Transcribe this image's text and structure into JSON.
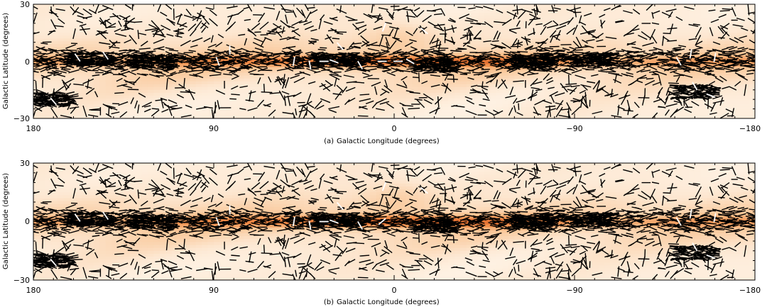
{
  "chart_data": [
    {
      "type": "heatmap",
      "panel_label": "(a)",
      "xlabel": "Galactic Longitude (degrees)",
      "ylabel": "Galactic Latitude (degrees)",
      "xlim": [
        180,
        -180
      ],
      "ylim": [
        -30,
        30
      ],
      "x_ticks": [
        180,
        90,
        0,
        -90,
        -180
      ],
      "x_tick_labels": [
        "180",
        "90",
        "0",
        "−90",
        "−180"
      ],
      "y_ticks": [
        30,
        0,
        -30
      ],
      "y_tick_labels": [
        "30",
        "0",
        "−30"
      ],
      "grid": false,
      "colormap": [
        "#fffaf2",
        "#fde6cf",
        "#f9c493",
        "#f08f4b",
        "#dc5a1e",
        "#a8220c"
      ],
      "overlay": {
        "type": "polarization-vectors",
        "primary_color": "#000000",
        "highlight_color": "#ffffff",
        "highlights": [
          {
            "l": 158,
            "b": 2,
            "angle": 55
          },
          {
            "l": 88,
            "b": 0,
            "angle": 70
          },
          {
            "l": 82,
            "b": 6,
            "angle": 90
          },
          {
            "l": 50,
            "b": 0,
            "angle": 100
          },
          {
            "l": 42,
            "b": -2,
            "angle": 80
          },
          {
            "l": 35,
            "b": 0,
            "angle": 0
          },
          {
            "l": 30,
            "b": 0,
            "angle": 20
          },
          {
            "l": 27,
            "b": 8,
            "angle": 50
          },
          {
            "l": 17,
            "b": -2,
            "angle": 60
          },
          {
            "l": 6,
            "b": 0,
            "angle": 0
          },
          {
            "l": -15,
            "b": 16,
            "angle": 40
          },
          {
            "l": -2,
            "b": 0,
            "angle": 0
          },
          {
            "l": -8,
            "b": 0,
            "angle": 30
          },
          {
            "l": 5,
            "b": 18,
            "angle": 110
          },
          {
            "l": -142,
            "b": 0,
            "angle": 60
          },
          {
            "l": -148,
            "b": 4,
            "angle": 100
          },
          {
            "l": -158,
            "b": -18,
            "angle": 20
          },
          {
            "l": -150,
            "b": -13,
            "angle": 60
          },
          {
            "l": -160,
            "b": 2,
            "angle": 100
          },
          {
            "l": 170,
            "b": -21,
            "angle": 50
          },
          {
            "l": 144,
            "b": 3,
            "angle": 55
          }
        ]
      }
    },
    {
      "type": "heatmap",
      "panel_label": "(b)",
      "xlabel": "Galactic Longitude (degrees)",
      "ylabel": "Galactic Latitude (degrees)",
      "xlim": [
        180,
        -180
      ],
      "ylim": [
        -30,
        30
      ],
      "x_ticks": [
        180,
        90,
        0,
        -90,
        -180
      ],
      "x_tick_labels": [
        "180",
        "90",
        "0",
        "−90",
        "−180"
      ],
      "y_ticks": [
        30,
        0,
        -30
      ],
      "y_tick_labels": [
        "30",
        "0",
        "−30"
      ],
      "grid": false,
      "colormap": [
        "#fffaf2",
        "#fde6cf",
        "#f9c493",
        "#f08f4b",
        "#dc5a1e",
        "#a8220c"
      ],
      "overlay": {
        "type": "polarization-vectors",
        "primary_color": "#000000",
        "highlight_color": "#ffffff",
        "highlights": [
          {
            "l": 158,
            "b": 2,
            "angle": 55
          },
          {
            "l": 88,
            "b": 0,
            "angle": 70
          },
          {
            "l": 82,
            "b": 6,
            "angle": 90
          },
          {
            "l": 50,
            "b": 0,
            "angle": 100
          },
          {
            "l": 42,
            "b": -2,
            "angle": 80
          },
          {
            "l": 35,
            "b": 0,
            "angle": 0
          },
          {
            "l": 30,
            "b": 0,
            "angle": 20
          },
          {
            "l": 27,
            "b": 8,
            "angle": 50
          },
          {
            "l": 17,
            "b": -2,
            "angle": 60
          },
          {
            "l": 6,
            "b": 0,
            "angle": 140
          },
          {
            "l": -15,
            "b": 16,
            "angle": 40
          },
          {
            "l": 5,
            "b": 18,
            "angle": 110
          },
          {
            "l": -142,
            "b": 0,
            "angle": 60
          },
          {
            "l": -148,
            "b": 4,
            "angle": 100
          },
          {
            "l": -158,
            "b": -18,
            "angle": 20
          },
          {
            "l": -150,
            "b": -13,
            "angle": 60
          },
          {
            "l": -160,
            "b": 2,
            "angle": 100
          },
          {
            "l": 170,
            "b": -21,
            "angle": 50
          },
          {
            "l": 144,
            "b": 3,
            "angle": 55
          }
        ]
      }
    }
  ]
}
